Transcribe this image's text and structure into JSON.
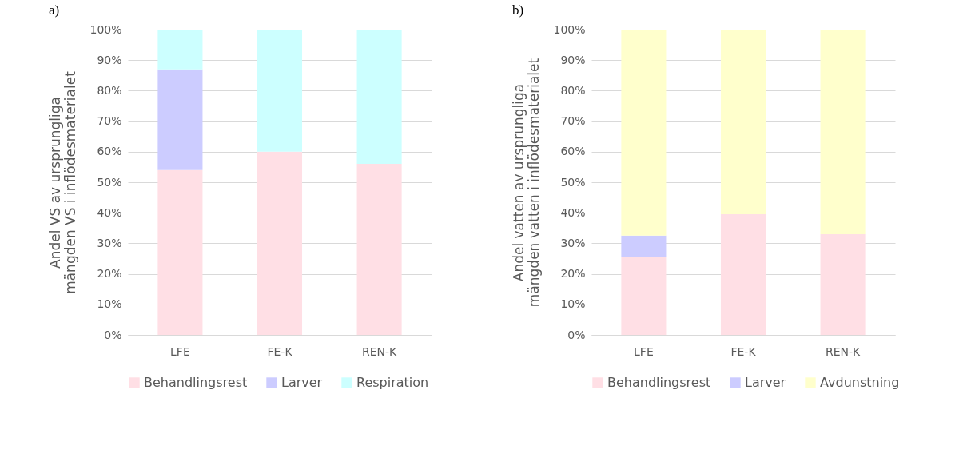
{
  "chart_data": [
    {
      "type": "bar",
      "title": "a)",
      "ylabel": "Andel VS av ursprungliga mängden VS i inflödesmaterialet",
      "categories": [
        "LFE",
        "FE-K",
        "REN-K"
      ],
      "stacked": true,
      "series": [
        {
          "name": "Behandlingsrest",
          "color": "#ffdfe5",
          "values": [
            54,
            60,
            56
          ]
        },
        {
          "name": "Larver",
          "color": "#ccccff",
          "values": [
            33,
            null,
            null
          ]
        },
        {
          "name": "Respiration",
          "color": "#ccffff",
          "values": [
            13,
            40,
            44
          ]
        }
      ],
      "ylim": [
        0,
        100
      ],
      "yticks": [
        {
          "value": 0,
          "label": "0%"
        },
        {
          "value": 10,
          "label": "10%"
        },
        {
          "value": 20,
          "label": "20%"
        },
        {
          "value": 30,
          "label": "30%"
        },
        {
          "value": 40,
          "label": "40%"
        },
        {
          "value": 50,
          "label": "50%"
        },
        {
          "value": 60,
          "label": "60%"
        },
        {
          "value": 70,
          "label": "70%"
        },
        {
          "value": 80,
          "label": "80%"
        },
        {
          "value": 90,
          "label": "90%"
        },
        {
          "value": 100,
          "label": "100%"
        }
      ],
      "grid": "y",
      "legend": "bottom"
    },
    {
      "type": "bar",
      "title": "b)",
      "ylabel": "Andel vatten av ursprungliga mängden vatten i inflödesmaterialet",
      "categories": [
        "LFE",
        "FE-K",
        "REN-K"
      ],
      "stacked": true,
      "series": [
        {
          "name": "Behandlingsrest",
          "color": "#ffdfe5",
          "values": [
            25.5,
            39.5,
            33
          ]
        },
        {
          "name": "Larver",
          "color": "#ccccff",
          "values": [
            7,
            null,
            null
          ]
        },
        {
          "name": "Avdunstning",
          "color": "#ffffcc",
          "values": [
            67.5,
            60.5,
            67
          ]
        }
      ],
      "ylim": [
        0,
        100
      ],
      "yticks": [
        {
          "value": 0,
          "label": "0%"
        },
        {
          "value": 10,
          "label": "10%"
        },
        {
          "value": 20,
          "label": "20%"
        },
        {
          "value": 30,
          "label": "30%"
        },
        {
          "value": 40,
          "label": "40%"
        },
        {
          "value": 50,
          "label": "50%"
        },
        {
          "value": 60,
          "label": "60%"
        },
        {
          "value": 70,
          "label": "70%"
        },
        {
          "value": 80,
          "label": "80%"
        },
        {
          "value": 90,
          "label": "90%"
        },
        {
          "value": 100,
          "label": "100%"
        }
      ],
      "grid": "y",
      "legend": "bottom"
    }
  ]
}
